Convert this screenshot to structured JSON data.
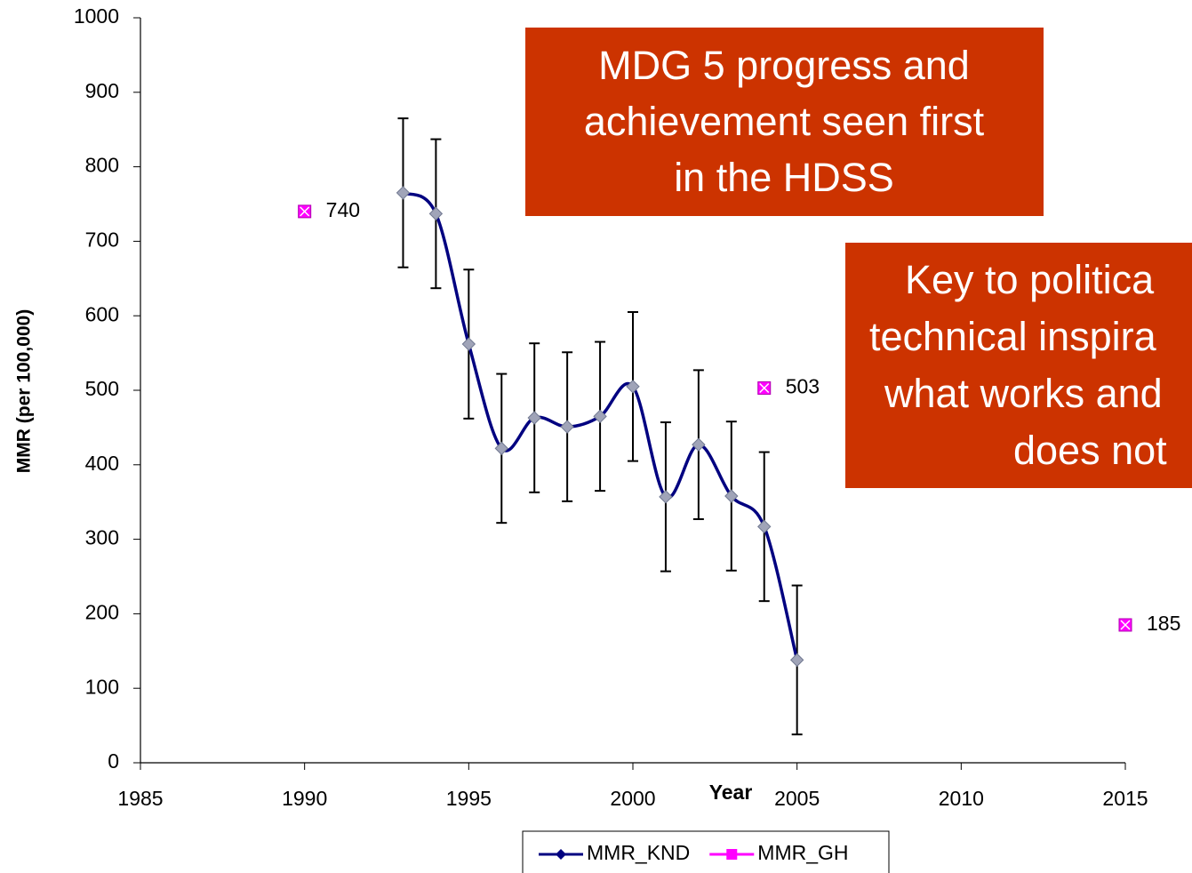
{
  "chart_data": {
    "type": "line",
    "x_label": "Year",
    "y_label": "MMR (per 100,000)",
    "xlim": [
      1985,
      2015
    ],
    "xticks": [
      1985,
      1990,
      1995,
      2000,
      2005,
      2010,
      2015
    ],
    "ylim": [
      0,
      1000
    ],
    "yticks": [
      0,
      100,
      200,
      300,
      400,
      500,
      600,
      700,
      800,
      900,
      1000
    ],
    "legend": "bottom",
    "series": [
      {
        "name": "MMR_KND",
        "color": "#000080",
        "marker": "diamond",
        "smooth": true,
        "x": [
          1993,
          1994,
          1995,
          1996,
          1997,
          1998,
          1999,
          2000,
          2001,
          2002,
          2003,
          2004,
          2005
        ],
        "values": [
          765,
          737,
          562,
          422,
          463,
          451,
          465,
          505,
          357,
          427,
          358,
          317,
          138
        ],
        "errors": [
          100,
          100,
          100,
          100,
          100,
          100,
          100,
          100,
          100,
          100,
          100,
          100,
          100
        ]
      },
      {
        "name": "MMR_GH",
        "color": "#ff00ff",
        "marker": "square",
        "line": false,
        "data_labels": true,
        "x": [
          1990,
          2004,
          2015
        ],
        "values": [
          740,
          503,
          185
        ]
      }
    ],
    "annotations": [
      {
        "color": "#cc3300",
        "lines": [
          "MDG 5 progress and",
          "achievement seen first",
          "in the HDSS"
        ]
      },
      {
        "color": "#cc3300",
        "lines": [
          "Key to politica",
          "technical inspira",
          "what works and",
          "does not"
        ]
      }
    ]
  }
}
